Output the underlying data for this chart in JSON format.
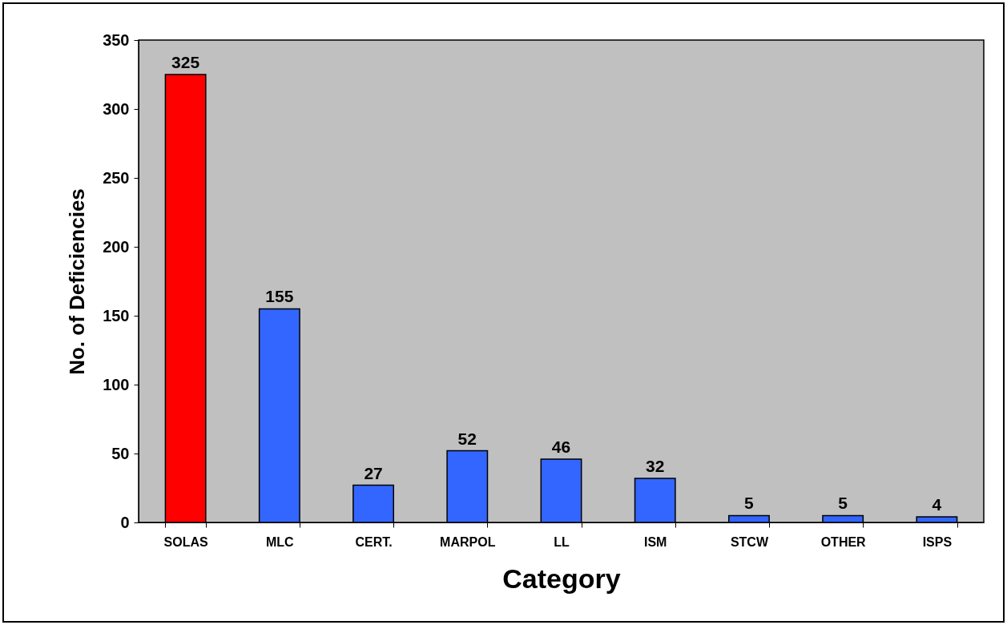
{
  "chart_data": {
    "type": "bar",
    "xlabel": "Category",
    "ylabel": "No. of Deficiencies",
    "categories": [
      "SOLAS",
      "MLC",
      "CERT.",
      "MARPOL",
      "LL",
      "ISM",
      "STCW",
      "OTHER",
      "ISPS"
    ],
    "values": [
      325,
      155,
      27,
      52,
      46,
      32,
      5,
      5,
      4
    ],
    "colors": [
      "#ff0000",
      "#3366ff",
      "#3366ff",
      "#3366ff",
      "#3366ff",
      "#3366ff",
      "#3366ff",
      "#3366ff",
      "#3366ff"
    ],
    "ylim": [
      0,
      350
    ],
    "yticks": [
      0,
      50,
      100,
      150,
      200,
      250,
      300,
      350
    ],
    "data_labels": true,
    "grid": false
  }
}
